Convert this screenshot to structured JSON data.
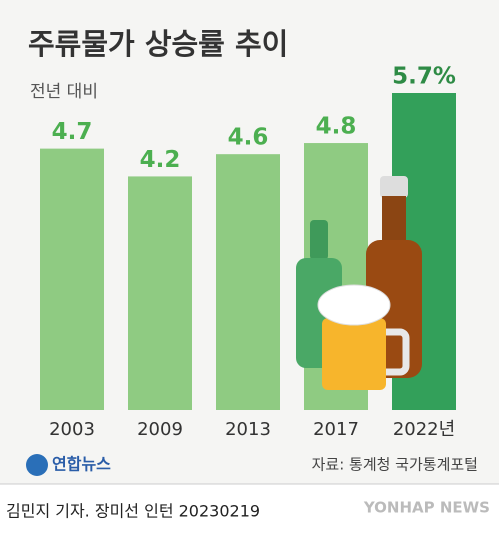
{
  "chart_data": {
    "type": "bar",
    "title": "주류물가 상승률 추이",
    "subtitle": "전년 대비",
    "categories": [
      "2003",
      "2009",
      "2013",
      "2017",
      "2022년"
    ],
    "values": [
      4.7,
      4.2,
      4.6,
      4.8,
      5.7
    ],
    "value_labels": [
      "4.7",
      "4.2",
      "4.6",
      "4.8",
      "5.7%"
    ],
    "colors": [
      "#8fcb82",
      "#8fcb82",
      "#8fcb82",
      "#8fcb82",
      "#33a05a"
    ],
    "label_colors": [
      "#4caf50",
      "#4caf50",
      "#4caf50",
      "#4caf50",
      "#2e8b45"
    ],
    "source": "자료: 통계청 국가통계포털",
    "logo": "연합뉴스",
    "credit": "김민지 기자. 장미선 인턴  20230219",
    "watermark": "YONHAP NEWS"
  }
}
